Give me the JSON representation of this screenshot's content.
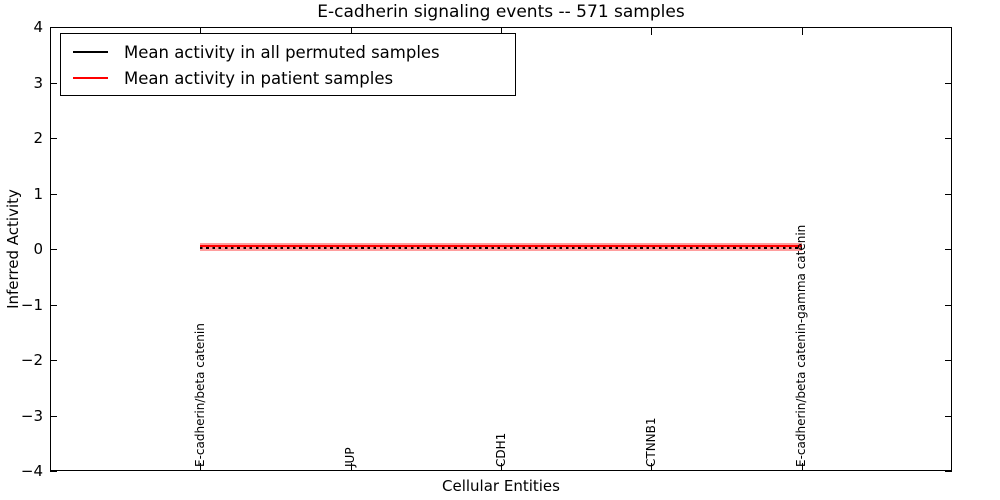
{
  "chart_data": {
    "type": "line",
    "title": "E-cadherin signaling events -- 571 samples",
    "xlabel": "Cellular Entities",
    "ylabel": "Inferred Activity",
    "xlim": [
      0,
      6
    ],
    "ylim": [
      -4,
      4
    ],
    "grid": false,
    "legend_position": "upper left",
    "yticks": [
      4,
      3,
      2,
      1,
      0,
      -1,
      -2,
      -3,
      -4
    ],
    "ytick_labels": [
      "4",
      "3",
      "2",
      "1",
      "0",
      "−1",
      "−2",
      "−3",
      "−4"
    ],
    "categories": [
      "E-cadherin/beta catenin",
      "JUP",
      "CDH1",
      "CTNNB1",
      "E-cadherin/beta catenin-gamma catenin"
    ],
    "x": [
      1,
      2,
      3,
      4,
      5
    ],
    "series": [
      {
        "key": "permuted",
        "name": "Mean activity in all permuted samples",
        "color": "#000000",
        "linestyle": "dotted",
        "values": [
          0.01,
          0.01,
          0.01,
          0.01,
          0.01
        ]
      },
      {
        "key": "patient",
        "name": "Mean activity in patient samples",
        "color": "#ff0000",
        "linestyle": "solid",
        "values": [
          0.05,
          0.05,
          0.05,
          0.05,
          0.05
        ]
      }
    ],
    "band": {
      "series": "patient",
      "upper": [
        0.1,
        0.1,
        0.1,
        0.1,
        0.1
      ],
      "lower": [
        -0.04,
        -0.04,
        -0.04,
        -0.04,
        -0.04
      ],
      "color": "#ff0000",
      "opacity": 0.38
    }
  },
  "legend": {
    "items": [
      {
        "key": "permuted",
        "label": "Mean activity in all permuted samples",
        "color": "#000000"
      },
      {
        "key": "patient",
        "label": "Mean activity in patient samples",
        "color": "#ff0000"
      }
    ]
  },
  "colors": {
    "foreground": "#000000",
    "background": "#ffffff",
    "patient_line": "#ff0000",
    "permuted_line": "#000000"
  }
}
